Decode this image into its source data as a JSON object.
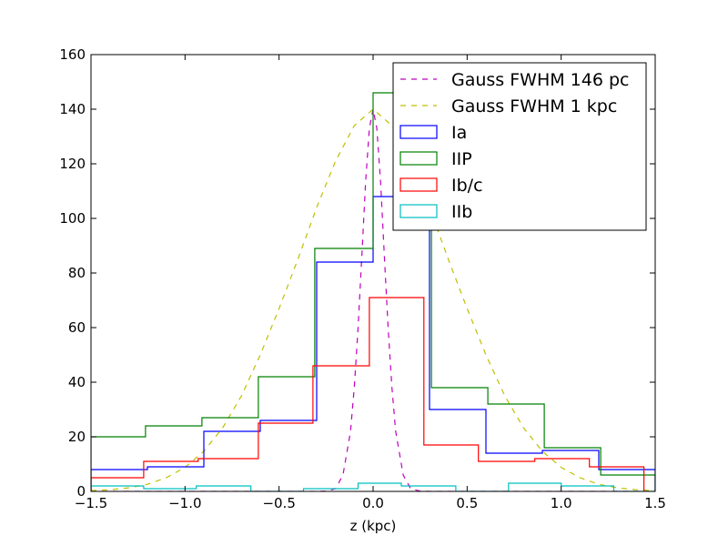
{
  "chart_data": {
    "type": "line",
    "title": "",
    "xlabel": "z (kpc)",
    "ylabel": "",
    "xlim": [
      -1.5,
      1.5
    ],
    "ylim": [
      0,
      160
    ],
    "xticks": [
      -1.5,
      -1.0,
      -0.5,
      0.0,
      0.5,
      1.0,
      1.5
    ],
    "xtick_labels": [
      "−1.5",
      "−1.0",
      "−0.5",
      "0.0",
      "0.5",
      "1.0",
      "1.5"
    ],
    "yticks": [
      0,
      20,
      40,
      60,
      80,
      100,
      120,
      140,
      160
    ],
    "ytick_labels": [
      "0",
      "20",
      "40",
      "60",
      "80",
      "100",
      "120",
      "140",
      "160"
    ],
    "grid": false,
    "legend_position": "top-right",
    "series": [
      {
        "name": "Gauss FWHM 146 pc",
        "kind": "curve",
        "style": "dashed",
        "color": "#bf00bf",
        "x": [
          -1.5,
          -0.3,
          -0.25,
          -0.2,
          -0.16,
          -0.12,
          -0.1,
          -0.08,
          -0.06,
          -0.04,
          -0.02,
          0.0,
          0.02,
          0.04,
          0.06,
          0.08,
          0.1,
          0.12,
          0.16,
          0.2,
          0.25,
          0.3,
          1.5
        ],
        "y": [
          0,
          0,
          0.1,
          1,
          6,
          22,
          38,
          60,
          86,
          113,
          133,
          140,
          133,
          113,
          86,
          60,
          38,
          22,
          6,
          1,
          0.1,
          0,
          0
        ]
      },
      {
        "name": "Gauss FWHM 1 kpc",
        "kind": "curve",
        "style": "dashed",
        "color": "#bfbf00",
        "x": [
          -1.5,
          -1.4,
          -1.3,
          -1.2,
          -1.1,
          -1.0,
          -0.9,
          -0.8,
          -0.7,
          -0.6,
          -0.5,
          -0.4,
          -0.3,
          -0.2,
          -0.1,
          0.0,
          0.1,
          0.2,
          0.3,
          0.4,
          0.5,
          0.6,
          0.7,
          0.8,
          0.9,
          1.0,
          1.1,
          1.2,
          1.3,
          1.4,
          1.5
        ],
        "y": [
          0.3,
          0.6,
          1.3,
          2.6,
          5.0,
          8.8,
          14.7,
          23.3,
          35.0,
          50.0,
          67.0,
          85.0,
          104.0,
          121.0,
          134.0,
          140.0,
          134.0,
          121.0,
          104.0,
          85.0,
          67.0,
          50.0,
          35.0,
          23.3,
          14.7,
          8.8,
          5.0,
          2.6,
          1.3,
          0.6,
          0.3
        ]
      },
      {
        "name": "Ia",
        "kind": "step",
        "style": "solid",
        "color": "#0000ff",
        "edges": [
          -1.5,
          -1.2,
          -0.9,
          -0.6,
          -0.3,
          0.0,
          0.3,
          0.6,
          0.9,
          1.2,
          1.5
        ],
        "values": [
          8,
          9,
          22,
          26,
          84,
          108,
          30,
          14,
          15,
          8
        ]
      },
      {
        "name": "IIP",
        "kind": "step",
        "style": "solid",
        "color": "#008000",
        "edges": [
          -1.5,
          -1.21,
          -0.91,
          -0.61,
          -0.31,
          0.0,
          0.31,
          0.61,
          0.91,
          1.21,
          1.5
        ],
        "values": [
          20,
          24,
          27,
          42,
          89,
          146,
          38,
          32,
          16,
          6
        ]
      },
      {
        "name": "Ib/c",
        "kind": "step",
        "style": "solid",
        "color": "#ff0000",
        "edges": [
          -1.5,
          -1.22,
          -0.93,
          -0.61,
          -0.32,
          -0.02,
          0.27,
          0.56,
          0.86,
          1.15,
          1.44
        ],
        "values": [
          5,
          11,
          12,
          25,
          46,
          71,
          17,
          11,
          12,
          9
        ]
      },
      {
        "name": "IIb",
        "kind": "step",
        "style": "solid",
        "color": "#00bfbf",
        "edges": [
          -1.5,
          -1.22,
          -0.94,
          -0.65,
          -0.37,
          -0.08,
          0.15,
          0.44,
          0.72,
          1.0,
          1.28,
          1.5
        ],
        "values": [
          2,
          1,
          2,
          0,
          1,
          3,
          2,
          0,
          3,
          2,
          0
        ]
      }
    ]
  }
}
